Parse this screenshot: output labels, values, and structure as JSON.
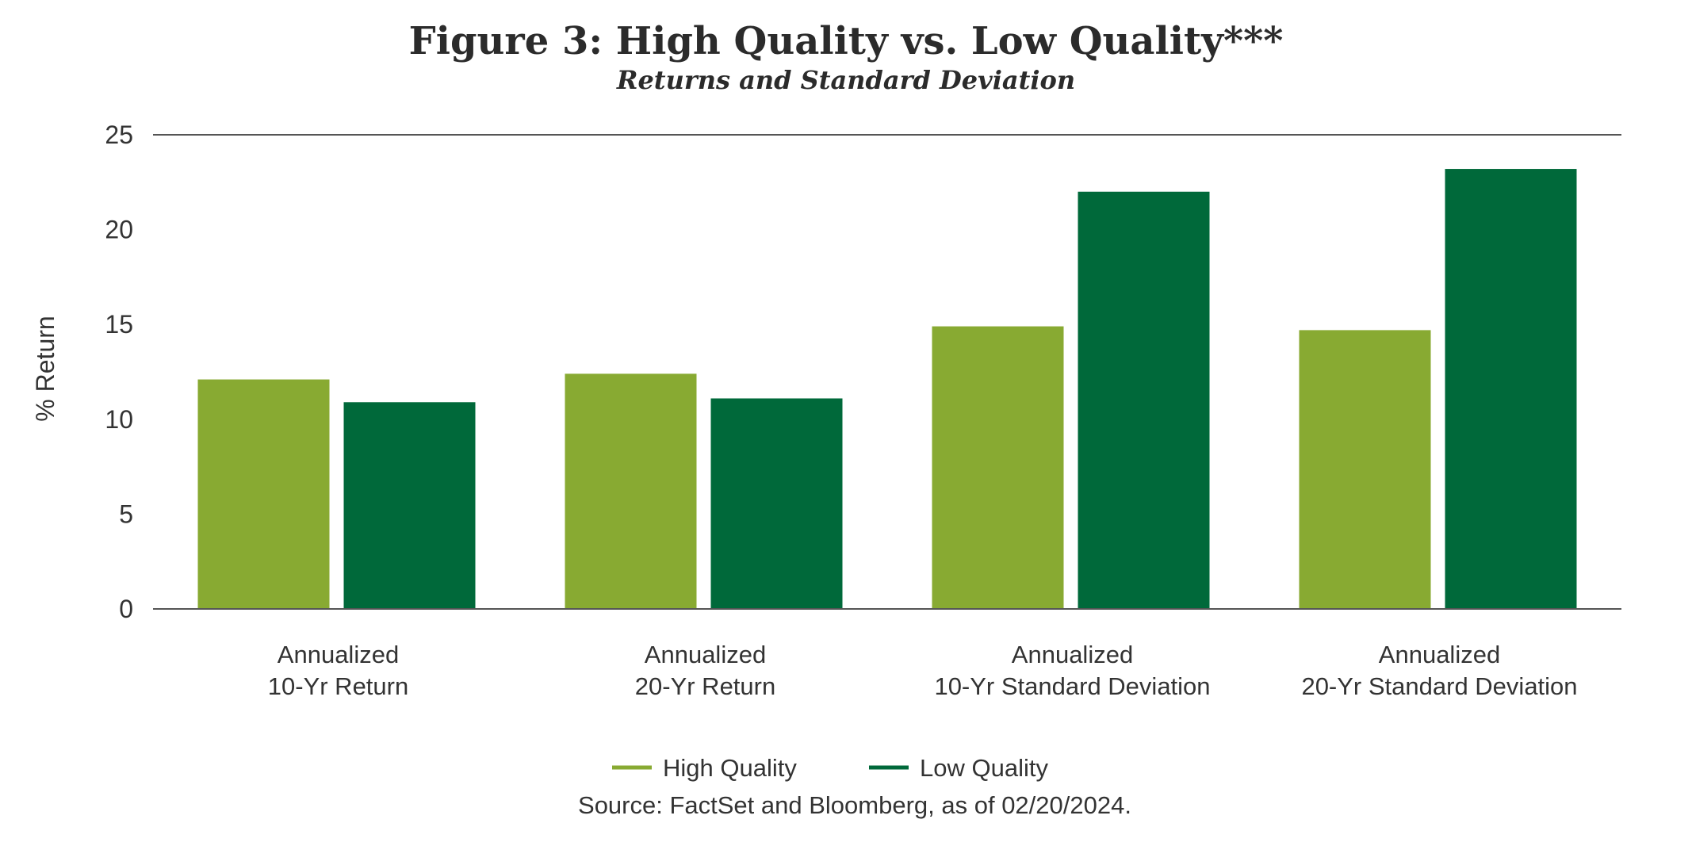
{
  "chart_data": {
    "type": "bar",
    "title": "Figure 3: High Quality vs. Low Quality***",
    "subtitle": "Returns and Standard Deviation",
    "ylabel": "% Return",
    "xlabel": "",
    "ylim": [
      0,
      25
    ],
    "yticks": [
      "0",
      "5",
      "10",
      "15",
      "20",
      "25"
    ],
    "categories": [
      [
        "Annualized",
        "10-Yr Return"
      ],
      [
        "Annualized",
        "20-Yr Return"
      ],
      [
        "Annualized",
        "10-Yr Standard Deviation"
      ],
      [
        "Annualized",
        "20-Yr Standard Deviation"
      ]
    ],
    "series": [
      {
        "name": "High Quality",
        "color": "#88aa32",
        "values": [
          12.1,
          12.4,
          14.9,
          14.7
        ]
      },
      {
        "name": "Low Quality",
        "color": "#00693a",
        "values": [
          10.9,
          11.1,
          22.0,
          23.2
        ]
      }
    ],
    "legend": "bottom-center",
    "grid": false,
    "source": "Source: FactSet and Bloomberg, as of 02/20/2024."
  }
}
